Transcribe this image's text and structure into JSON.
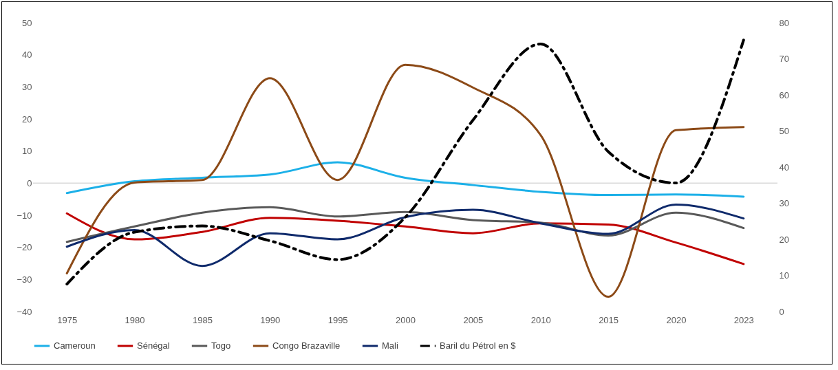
{
  "chart_data": {
    "type": "line",
    "categories": [
      "1975",
      "1980",
      "1985",
      "1990",
      "1995",
      "2000",
      "2005",
      "2010",
      "2015",
      "2020",
      "2023"
    ],
    "series": [
      {
        "name": "Cameroun",
        "color": "#1cb0e8",
        "values": [
          -3.1,
          0.6,
          1.7,
          2.7,
          6.5,
          1.7,
          -0.6,
          -2.7,
          -3.7,
          -3.5,
          -4.2
        ]
      },
      {
        "name": "Sénégal",
        "color": "#c00000",
        "values": [
          -9.4,
          -17.5,
          -15.2,
          -10.8,
          -11.7,
          -13.5,
          -15.6,
          -12.5,
          -12.9,
          -18.5,
          -25.2
        ]
      },
      {
        "name": "Togo",
        "color": "#595959",
        "values": [
          -18.3,
          -13.5,
          -9.2,
          -7.5,
          -10.4,
          -9,
          -11.5,
          -12.3,
          -16.3,
          -9.2,
          -14
        ]
      },
      {
        "name": "Congo Brazaville",
        "color": "#8c4a17",
        "values": [
          -28.1,
          0.2,
          1,
          32.7,
          1,
          36.9,
          29.8,
          15,
          -35.4,
          16.5,
          17.5
        ]
      },
      {
        "name": "Mali",
        "color": "#0f2a6b",
        "values": [
          -19.8,
          -14.6,
          -25.8,
          -15.6,
          -17.5,
          -10.6,
          -8.3,
          -12.5,
          -15.8,
          -6.7,
          -11
        ]
      },
      {
        "name": "Baril du Pétrol en $",
        "color": "#000000",
        "axis": "y2",
        "line_style": "dashed",
        "values": [
          7.6,
          22,
          23.7,
          19.6,
          14.4,
          26.1,
          53,
          74.1,
          44.3,
          35.6,
          75.2
        ]
      }
    ],
    "ylim": [
      -40,
      50
    ],
    "yticks": [
      -40,
      -30,
      -20,
      -10,
      0,
      10,
      20,
      30,
      40,
      50
    ],
    "y2lim": [
      0,
      80
    ],
    "y2ticks": [
      0,
      10,
      20,
      30,
      40,
      50,
      60,
      70,
      80
    ],
    "ref_lines": [
      {
        "axis": "y",
        "value": 0,
        "color": "#d9d9d9"
      }
    ],
    "grid": false,
    "legend": "bottom",
    "line_style": "solid",
    "marker": "none"
  }
}
